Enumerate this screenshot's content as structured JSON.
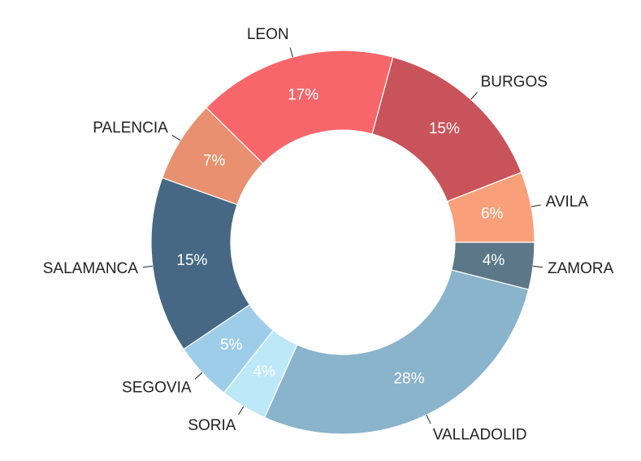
{
  "chart_data": {
    "type": "donut",
    "categories": [
      "AVILA",
      "BURGOS",
      "LEON",
      "PALENCIA",
      "SALAMANCA",
      "SEGOVIA",
      "SORIA",
      "VALLADOLID",
      "ZAMORA"
    ],
    "values": [
      6,
      15,
      17,
      7,
      15,
      5,
      4,
      28,
      4
    ],
    "value_labels": [
      "6%",
      "15%",
      "17%",
      "7%",
      "15%",
      "5%",
      "4%",
      "28%",
      "4%"
    ],
    "colors": [
      "#f9a07a",
      "#c9535a",
      "#f7666a",
      "#e8906f",
      "#466884",
      "#9ecde9",
      "#bde8f8",
      "#8ab3cc",
      "#5c7888"
    ]
  }
}
